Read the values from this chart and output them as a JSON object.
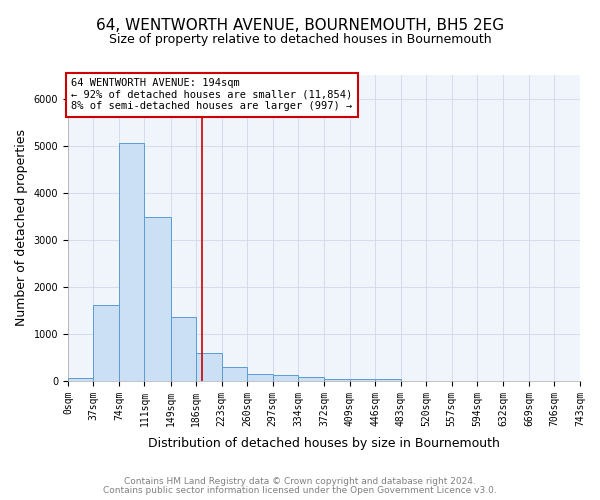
{
  "title": "64, WENTWORTH AVENUE, BOURNEMOUTH, BH5 2EG",
  "subtitle": "Size of property relative to detached houses in Bournemouth",
  "xlabel": "Distribution of detached houses by size in Bournemouth",
  "ylabel": "Number of detached properties",
  "bin_edges": [
    0,
    37,
    74,
    111,
    149,
    186,
    223,
    260,
    297,
    334,
    372,
    409,
    446,
    483,
    520,
    557,
    594,
    632,
    669,
    706,
    743
  ],
  "bin_labels": [
    "0sqm",
    "37sqm",
    "74sqm",
    "111sqm",
    "149sqm",
    "186sqm",
    "223sqm",
    "260sqm",
    "297sqm",
    "334sqm",
    "372sqm",
    "409sqm",
    "446sqm",
    "483sqm",
    "520sqm",
    "557sqm",
    "594sqm",
    "632sqm",
    "669sqm",
    "706sqm",
    "743sqm"
  ],
  "bar_heights": [
    60,
    1620,
    5050,
    3480,
    1350,
    600,
    300,
    150,
    120,
    85,
    45,
    35,
    35,
    4,
    4,
    3,
    2,
    2,
    1,
    1
  ],
  "bar_face_color": "#cce0f5",
  "bar_edge_color": "#5b9bd5",
  "property_line_x": 194,
  "property_line_color": "#cc0000",
  "annotation_text": "64 WENTWORTH AVENUE: 194sqm\n← 92% of detached houses are smaller (11,854)\n8% of semi-detached houses are larger (997) →",
  "annotation_box_color": "#ffffff",
  "annotation_box_edge": "#cc0000",
  "ylim": [
    0,
    6500
  ],
  "xlim": [
    0,
    743
  ],
  "footer_line1": "Contains HM Land Registry data © Crown copyright and database right 2024.",
  "footer_line2": "Contains public sector information licensed under the Open Government Licence v3.0.",
  "grid_color": "#d0d8e8",
  "title_fontsize": 11,
  "subtitle_fontsize": 9,
  "axis_label_fontsize": 9,
  "tick_fontsize": 7,
  "annotation_fontsize": 7.5,
  "footer_fontsize": 6.5,
  "bg_color": "#f0f4fb"
}
